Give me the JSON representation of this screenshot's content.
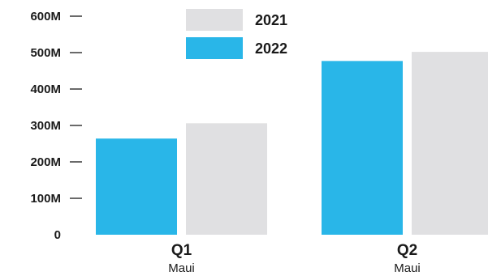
{
  "chart_data": {
    "type": "bar",
    "categories": [
      "Q1",
      "Q2"
    ],
    "category_sublabels": [
      "Maui",
      "Maui"
    ],
    "series": [
      {
        "name": "2022",
        "values": [
          264000000,
          477000000
        ],
        "color": "#29b6e8"
      },
      {
        "name": "2021",
        "values": [
          306000000,
          502000000
        ],
        "color": "#e0e0e2"
      }
    ],
    "ylim": [
      0,
      600000000
    ],
    "yticks": [
      0,
      100000000,
      200000000,
      300000000,
      400000000,
      500000000,
      600000000
    ],
    "ytick_labels": [
      "0",
      "100M",
      "200M",
      "300M",
      "400M",
      "500M",
      "600M"
    ],
    "legend": {
      "placement": "top-center",
      "entries": [
        "2021",
        "2022"
      ]
    },
    "grid": false,
    "title": "",
    "xlabel": "",
    "ylabel": ""
  }
}
